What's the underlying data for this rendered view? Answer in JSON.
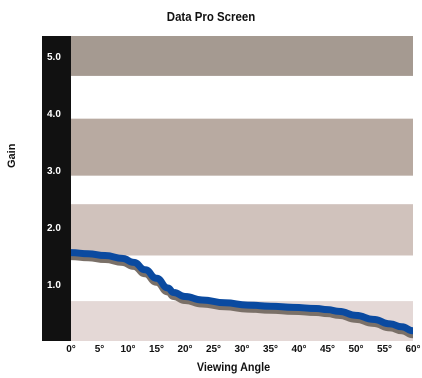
{
  "chart_data": {
    "type": "line",
    "title": "Data Pro Screen",
    "xlabel": "Viewing Angle",
    "ylabel": "Gain",
    "xlim": [
      0,
      60
    ],
    "ylim": [
      0,
      5.35
    ],
    "x_ticks": [
      "0°",
      "5°",
      "10°",
      "15°",
      "20°",
      "25°",
      "30°",
      "35°",
      "40°",
      "45°",
      "50°",
      "55°",
      "60°"
    ],
    "y_ticks": [
      "1.0",
      "2.0",
      "3.0",
      "4.0",
      "5.0"
    ],
    "bands": [
      {
        "from": 0.0,
        "to": 0.7,
        "color": "#e4d8d6"
      },
      {
        "from": 1.5,
        "to": 2.4,
        "color": "#d0c2bc"
      },
      {
        "from": 2.9,
        "to": 3.9,
        "color": "#b8aaa1"
      },
      {
        "from": 4.65,
        "to": 5.35,
        "color": "#a59a91"
      }
    ],
    "series": [
      {
        "x": [
          0,
          3,
          6,
          9,
          11,
          13,
          15,
          17,
          18,
          20,
          23,
          27,
          31,
          35,
          39,
          43,
          45,
          47,
          50,
          53,
          56,
          58,
          60
        ],
        "values": [
          1.55,
          1.53,
          1.5,
          1.45,
          1.38,
          1.25,
          1.1,
          0.93,
          0.85,
          0.78,
          0.72,
          0.67,
          0.63,
          0.61,
          0.59,
          0.57,
          0.55,
          0.52,
          0.45,
          0.38,
          0.3,
          0.25,
          0.18
        ],
        "color": "#0a4aa0"
      }
    ],
    "axis_bar_color": "#111111"
  }
}
